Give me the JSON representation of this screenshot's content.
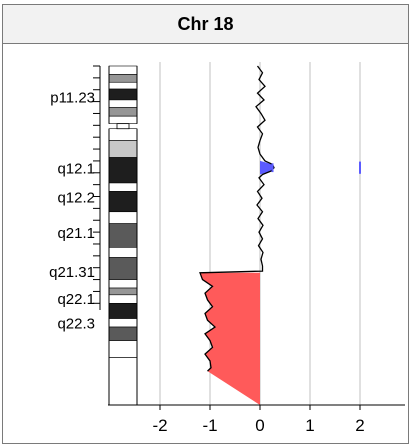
{
  "chart_data": {
    "type": "area",
    "title": "Chr 18",
    "xlabel": "",
    "ylabel": "",
    "xlim": [
      -3.2,
      2.9
    ],
    "xticks": [
      -2,
      -1,
      0,
      1,
      2
    ],
    "xtick_labels": [
      "-2",
      "-1",
      "0",
      "1",
      "2"
    ],
    "grid": true,
    "band_labels": [
      "p11.23",
      "q12.1",
      "q12.2",
      "q21.1",
      "q21.31",
      "q22.1",
      "q22.3"
    ],
    "band_label_positions": [
      0.09,
      0.3,
      0.385,
      0.49,
      0.605,
      0.685,
      0.757
    ],
    "ideogram_bands": [
      {
        "start": 0.0,
        "end": 0.025,
        "stain": "gneg"
      },
      {
        "start": 0.025,
        "end": 0.048,
        "stain": "gpos50"
      },
      {
        "start": 0.048,
        "end": 0.068,
        "stain": "gneg"
      },
      {
        "start": 0.068,
        "end": 0.1,
        "stain": "gpos100"
      },
      {
        "start": 0.1,
        "end": 0.122,
        "stain": "gneg"
      },
      {
        "start": 0.122,
        "end": 0.148,
        "stain": "gpos50"
      },
      {
        "start": 0.148,
        "end": 0.17,
        "stain": "gneg"
      },
      {
        "start": 0.185,
        "end": 0.22,
        "stain": "gneg"
      },
      {
        "start": 0.22,
        "end": 0.27,
        "stain": "gpos25"
      },
      {
        "start": 0.27,
        "end": 0.345,
        "stain": "gpos100"
      },
      {
        "start": 0.345,
        "end": 0.37,
        "stain": "gneg"
      },
      {
        "start": 0.37,
        "end": 0.43,
        "stain": "gpos100"
      },
      {
        "start": 0.43,
        "end": 0.465,
        "stain": "gneg"
      },
      {
        "start": 0.465,
        "end": 0.535,
        "stain": "gpos75"
      },
      {
        "start": 0.535,
        "end": 0.565,
        "stain": "gneg"
      },
      {
        "start": 0.565,
        "end": 0.63,
        "stain": "gpos75"
      },
      {
        "start": 0.63,
        "end": 0.655,
        "stain": "gneg"
      },
      {
        "start": 0.655,
        "end": 0.675,
        "stain": "gpos50"
      },
      {
        "start": 0.675,
        "end": 0.7,
        "stain": "gneg"
      },
      {
        "start": 0.7,
        "end": 0.745,
        "stain": "gpos100"
      },
      {
        "start": 0.745,
        "end": 0.77,
        "stain": "gneg"
      },
      {
        "start": 0.77,
        "end": 0.81,
        "stain": "gpos75"
      },
      {
        "start": 0.81,
        "end": 0.86,
        "stain": "gneg"
      },
      {
        "start": 0.86,
        "end": 1.0,
        "stain": "gneg"
      }
    ],
    "centromere": [
      0.17,
      0.185
    ],
    "series": [
      {
        "points": [
          [
            0.0,
            -0.05
          ],
          [
            0.02,
            0.05
          ],
          [
            0.04,
            -0.02
          ],
          [
            0.06,
            0.1
          ],
          [
            0.08,
            -0.05
          ],
          [
            0.1,
            0.08
          ],
          [
            0.12,
            -0.08
          ],
          [
            0.14,
            0.02
          ],
          [
            0.16,
            0.1
          ],
          [
            0.18,
            -0.05
          ],
          [
            0.2,
            0.05
          ],
          [
            0.22,
            0.0
          ],
          [
            0.24,
            -0.04
          ],
          [
            0.26,
            0.0
          ],
          [
            0.28,
            0.1
          ],
          [
            0.29,
            0.25
          ],
          [
            0.3,
            0.28
          ],
          [
            0.31,
            0.22
          ],
          [
            0.32,
            0.05
          ],
          [
            0.33,
            -0.02
          ],
          [
            0.35,
            0.08
          ],
          [
            0.37,
            -0.05
          ],
          [
            0.39,
            0.04
          ],
          [
            0.41,
            -0.06
          ],
          [
            0.43,
            0.05
          ],
          [
            0.45,
            -0.04
          ],
          [
            0.47,
            0.06
          ],
          [
            0.49,
            -0.02
          ],
          [
            0.51,
            0.05
          ],
          [
            0.53,
            -0.03
          ],
          [
            0.55,
            0.06
          ],
          [
            0.57,
            0.02
          ],
          [
            0.59,
            0.05
          ],
          [
            0.605,
            0.05
          ],
          [
            0.61,
            -1.2
          ],
          [
            0.63,
            -1.15
          ],
          [
            0.65,
            -0.95
          ],
          [
            0.67,
            -1.1
          ],
          [
            0.69,
            -1.05
          ],
          [
            0.71,
            -0.95
          ],
          [
            0.73,
            -1.1
          ],
          [
            0.75,
            -1.05
          ],
          [
            0.77,
            -0.9
          ],
          [
            0.79,
            -1.1
          ],
          [
            0.81,
            -1.0
          ],
          [
            0.83,
            -0.95
          ],
          [
            0.85,
            -1.1
          ],
          [
            0.87,
            -1.0
          ],
          [
            0.89,
            -0.98
          ],
          [
            0.9,
            -1.05
          ]
        ]
      }
    ],
    "gain_marks": [
      {
        "x": 0.25,
        "y_from": 0.287,
        "y_to": 0.313
      },
      {
        "x": 2.0,
        "y_from": 0.282,
        "y_to": 0.318
      }
    ],
    "colors": {
      "gain": "#5b5bff",
      "loss": "#ff5a5a",
      "line": "#000000",
      "grid": "#c0c0c0",
      "ideogram_edge": "#000000"
    }
  }
}
